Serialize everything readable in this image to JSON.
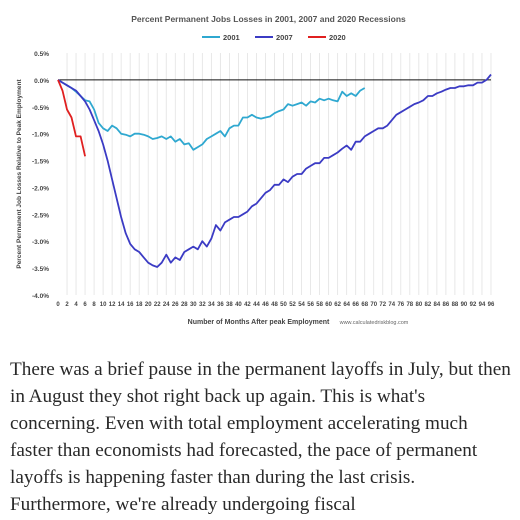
{
  "chart_data": {
    "type": "line",
    "title": "Percent Permanent Jobs Losses in 2001, 2007 and 2020 Recessions",
    "xlabel": "Number of Months After peak Employment",
    "ylabel": "Percent Permanent Job Losses Relative to Peak Employment",
    "source": "www.calculatedriskblog.com",
    "xlim": [
      0,
      96
    ],
    "ylim": [
      -4.0,
      0.5
    ],
    "x_ticks": [
      0,
      2,
      4,
      6,
      8,
      10,
      12,
      14,
      16,
      18,
      20,
      22,
      24,
      26,
      28,
      30,
      32,
      34,
      36,
      38,
      40,
      42,
      44,
      46,
      48,
      50,
      52,
      54,
      56,
      58,
      60,
      62,
      64,
      66,
      68,
      70,
      72,
      74,
      76,
      78,
      80,
      82,
      84,
      86,
      88,
      90,
      92,
      94,
      96
    ],
    "y_ticks": [
      "0.5%",
      "0.0%",
      "-0.5%",
      "-1.0%",
      "-1.5%",
      "-2.0%",
      "-2.5%",
      "-3.0%",
      "-3.5%",
      "-4.0%"
    ],
    "grid": "vertical",
    "legend_position": "top",
    "series": [
      {
        "name": "2001",
        "color": "#2FA8D0",
        "x": [
          0,
          1,
          2,
          3,
          4,
          5,
          6,
          7,
          8,
          9,
          10,
          11,
          12,
          13,
          14,
          15,
          16,
          17,
          18,
          19,
          20,
          21,
          22,
          23,
          24,
          25,
          26,
          27,
          28,
          29,
          30,
          31,
          32,
          33,
          34,
          35,
          36,
          37,
          38,
          39,
          40,
          41,
          42,
          43,
          44,
          45,
          46,
          47,
          48,
          49,
          50,
          51,
          52,
          53,
          54,
          55,
          56,
          57,
          58,
          59,
          60,
          61,
          62,
          63,
          64,
          65,
          66,
          67,
          68
        ],
        "values": [
          0,
          -0.05,
          -0.1,
          -0.15,
          -0.22,
          -0.3,
          -0.38,
          -0.4,
          -0.55,
          -0.8,
          -0.9,
          -0.95,
          -0.85,
          -0.9,
          -1.0,
          -1.02,
          -1.05,
          -1.0,
          -1.0,
          -1.02,
          -1.05,
          -1.1,
          -1.08,
          -1.05,
          -1.1,
          -1.05,
          -1.15,
          -1.1,
          -1.2,
          -1.18,
          -1.3,
          -1.25,
          -1.2,
          -1.1,
          -1.05,
          -1.0,
          -0.95,
          -1.05,
          -0.9,
          -0.85,
          -0.85,
          -0.7,
          -0.7,
          -0.65,
          -0.7,
          -0.72,
          -0.7,
          -0.68,
          -0.62,
          -0.58,
          -0.55,
          -0.45,
          -0.48,
          -0.45,
          -0.42,
          -0.48,
          -0.4,
          -0.42,
          -0.35,
          -0.38,
          -0.35,
          -0.38,
          -0.4,
          -0.22,
          -0.3,
          -0.25,
          -0.3,
          -0.2,
          -0.15
        ]
      },
      {
        "name": "2007",
        "color": "#3B3BC4",
        "x": [
          0,
          1,
          2,
          3,
          4,
          5,
          6,
          7,
          8,
          9,
          10,
          11,
          12,
          13,
          14,
          15,
          16,
          17,
          18,
          19,
          20,
          21,
          22,
          23,
          24,
          25,
          26,
          27,
          28,
          29,
          30,
          31,
          32,
          33,
          34,
          35,
          36,
          37,
          38,
          39,
          40,
          41,
          42,
          43,
          44,
          45,
          46,
          47,
          48,
          49,
          50,
          51,
          52,
          53,
          54,
          55,
          56,
          57,
          58,
          59,
          60,
          61,
          62,
          63,
          64,
          65,
          66,
          67,
          68,
          69,
          70,
          71,
          72,
          73,
          74,
          75,
          76,
          77,
          78,
          79,
          80,
          81,
          82,
          83,
          84,
          85,
          86,
          87,
          88,
          89,
          90,
          91,
          92,
          93,
          94,
          95,
          96
        ],
        "values": [
          0,
          -0.05,
          -0.1,
          -0.15,
          -0.2,
          -0.3,
          -0.4,
          -0.55,
          -0.75,
          -0.95,
          -1.2,
          -1.5,
          -1.85,
          -2.2,
          -2.55,
          -2.85,
          -3.05,
          -3.15,
          -3.2,
          -3.3,
          -3.4,
          -3.45,
          -3.48,
          -3.4,
          -3.25,
          -3.4,
          -3.3,
          -3.35,
          -3.2,
          -3.15,
          -3.1,
          -3.15,
          -3.0,
          -3.1,
          -2.95,
          -2.7,
          -2.8,
          -2.65,
          -2.6,
          -2.55,
          -2.55,
          -2.5,
          -2.45,
          -2.35,
          -2.3,
          -2.2,
          -2.1,
          -2.05,
          -1.95,
          -1.95,
          -1.85,
          -1.9,
          -1.8,
          -1.75,
          -1.75,
          -1.65,
          -1.6,
          -1.55,
          -1.55,
          -1.45,
          -1.45,
          -1.4,
          -1.35,
          -1.28,
          -1.22,
          -1.3,
          -1.15,
          -1.15,
          -1.05,
          -1.0,
          -0.95,
          -0.9,
          -0.9,
          -0.85,
          -0.75,
          -0.65,
          -0.6,
          -0.55,
          -0.5,
          -0.45,
          -0.42,
          -0.38,
          -0.3,
          -0.3,
          -0.25,
          -0.22,
          -0.18,
          -0.15,
          -0.15,
          -0.12,
          -0.12,
          -0.1,
          -0.1,
          -0.05,
          -0.05,
          0.0,
          0.1
        ]
      },
      {
        "name": "2020",
        "color": "#E02020",
        "x": [
          0,
          1,
          2,
          3,
          4,
          5,
          6
        ],
        "values": [
          0,
          -0.2,
          -0.55,
          -0.7,
          -1.05,
          -1.05,
          -1.42
        ]
      }
    ]
  },
  "article": {
    "text": "There was a brief pause in the permanent layoffs in July, but then in August they shot right back up again. This is what's concerning. Even with total employment accelerating much faster than economists had forecasted, the pace of permanent layoffs is happening faster than during the last crisis. Furthermore, we're already undergoing fiscal"
  }
}
